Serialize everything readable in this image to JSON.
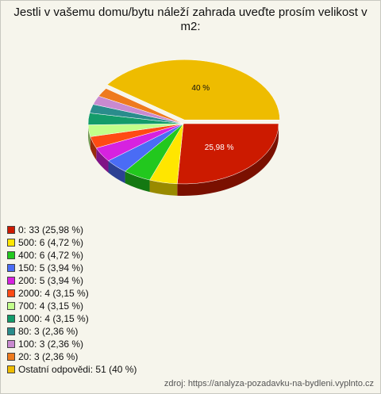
{
  "chart_data": {
    "type": "pie",
    "title": "Jestli v vašemu domu/bytu náleží zahrada uveďte prosím velikost v m2:",
    "categories": [
      "0: 33 (25,98 %)",
      "500: 6 (4,72 %)",
      "400: 6 (4,72 %)",
      "150: 5 (3,94 %)",
      "200: 5 (3,94 %)",
      "2000: 4 (3,15 %)",
      "700: 4 (3,15 %)",
      "1000: 4 (3,15 %)",
      "80: 3 (2,36 %)",
      "100: 3 (2,36 %)",
      "20: 3 (2,36 %)",
      "Ostatní odpovědi: 51 (40 %)"
    ],
    "values": [
      25.98,
      4.72,
      4.72,
      3.94,
      3.94,
      3.15,
      3.15,
      3.15,
      2.36,
      2.36,
      2.36,
      40
    ],
    "value_labels": [
      "25,98 %",
      null,
      null,
      null,
      null,
      null,
      null,
      null,
      null,
      null,
      null,
      "40 %"
    ],
    "colors": [
      "#cc1a00",
      "#ffe600",
      "#22c81e",
      "#4a6cf5",
      "#d622e0",
      "#ff4a14",
      "#c2ff8a",
      "#139c6a",
      "#2a8c8c",
      "#c98ad0",
      "#ee7a1e",
      "#eebc00"
    ],
    "source": "zdroj: https://analyza-pozadavku-na-bydleni.vyplnto.cz"
  }
}
